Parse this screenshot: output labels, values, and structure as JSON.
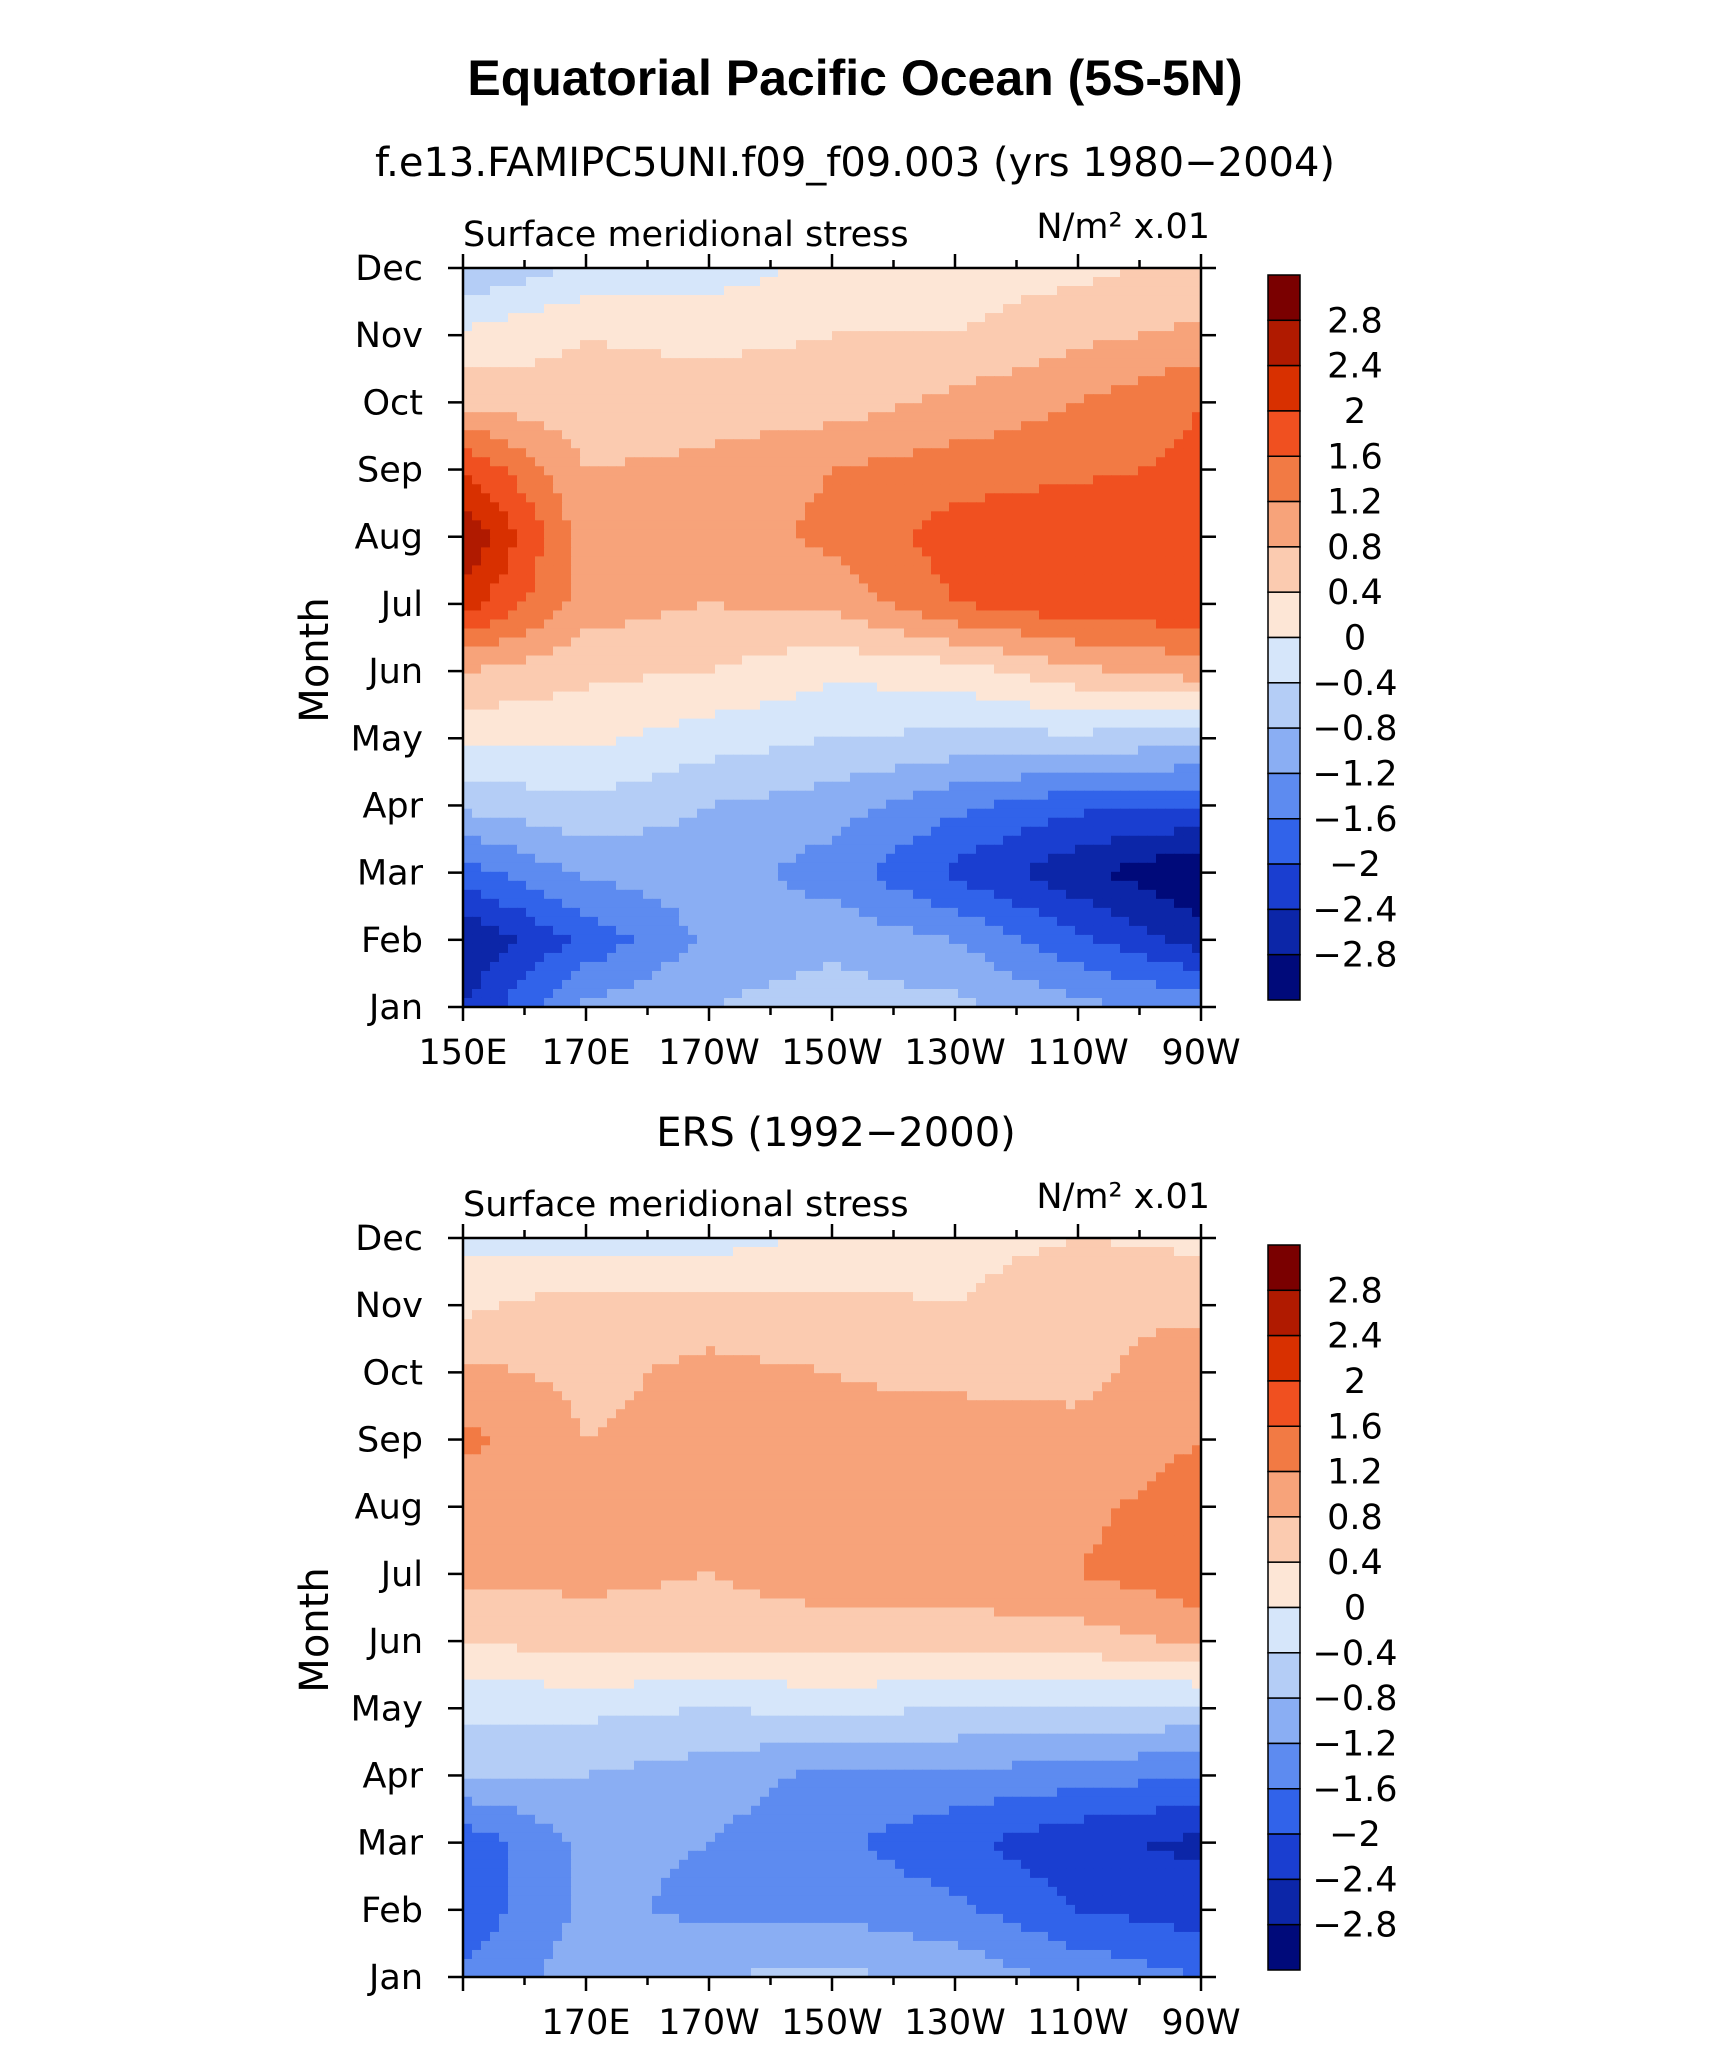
{
  "figure": {
    "title": "Equatorial Pacific Ocean (5S-5N)"
  },
  "colorbar": {
    "labels": [
      "2.8",
      "2.4",
      "2",
      "1.6",
      "1.2",
      "0.8",
      "0.4",
      "0",
      "−0.4",
      "−0.8",
      "−1.2",
      "−1.6",
      "−2",
      "−2.4",
      "−2.8"
    ],
    "colors": [
      "#7a0000",
      "#b01a00",
      "#d83000",
      "#f05020",
      "#f27a44",
      "#f7a37a",
      "#fbcbb0",
      "#fde6d6",
      "#d6e6fa",
      "#b4cdf6",
      "#8aaef3",
      "#5d8bf0",
      "#3163ea",
      "#1a3ed0",
      "#0c26a8",
      "#000a7a"
    ]
  },
  "chart_data": [
    {
      "type": "heatmap",
      "subtitle": "f.e13.FAMIPC5UNI.f09_f09.003 (yrs 1980−2004)",
      "left_label": "Surface meridional stress",
      "units": "N/m² x.01",
      "ylabel": "Month",
      "x_tick_labels": [
        "150E",
        "170E",
        "170W",
        "150W",
        "130W",
        "110W",
        "90W"
      ],
      "y_tick_labels": [
        "Jan",
        "Feb",
        "Mar",
        "Apr",
        "May",
        "Jun",
        "Jul",
        "Aug",
        "Sep",
        "Oct",
        "Nov",
        "Dec"
      ],
      "xlim_deg_east": [
        150,
        270
      ],
      "ylim_months": [
        1,
        12
      ],
      "x_centers_deg_east": [
        150,
        170,
        190,
        210,
        230,
        250,
        270
      ],
      "z_min": -3.2,
      "z_max": 3.2,
      "values": [
        [
          -2.4,
          -1.1,
          -0.8,
          -0.6,
          -0.7,
          -1.1,
          -1.3
        ],
        [
          -2.8,
          -1.9,
          -1.1,
          -0.9,
          -1.2,
          -1.9,
          -2.6
        ],
        [
          -1.8,
          -1.1,
          -1.0,
          -1.4,
          -2.1,
          -2.7,
          -3.2
        ],
        [
          -0.7,
          -0.5,
          -0.8,
          -1.0,
          -1.5,
          -1.9,
          -2.0
        ],
        [
          0.1,
          0.1,
          -0.2,
          -0.4,
          -0.5,
          -0.5,
          -0.6
        ],
        [
          0.8,
          0.5,
          0.4,
          0.1,
          0.2,
          0.7,
          1.0
        ],
        [
          2.2,
          1.0,
          0.8,
          0.9,
          1.6,
          1.9,
          1.9
        ],
        [
          2.8,
          1.0,
          1.0,
          1.3,
          1.8,
          2.0,
          1.9
        ],
        [
          2.0,
          0.8,
          0.9,
          1.2,
          1.4,
          1.5,
          1.7
        ],
        [
          0.7,
          0.5,
          0.6,
          0.6,
          0.9,
          1.2,
          1.6
        ],
        [
          0.1,
          0.4,
          0.3,
          0.4,
          0.4,
          0.7,
          0.9
        ],
        [
          -0.8,
          -0.3,
          -0.2,
          0.1,
          0.2,
          0.3,
          0.5
        ]
      ]
    },
    {
      "type": "heatmap",
      "subtitle": "ERS (1992−2000)",
      "left_label": "Surface meridional stress",
      "units": "N/m² x.01",
      "ylabel": "Month",
      "x_tick_labels": [
        "170E",
        "170W",
        "150W",
        "130W",
        "110W",
        "90W"
      ],
      "y_tick_labels": [
        "Jan",
        "Feb",
        "Mar",
        "Apr",
        "May",
        "Jun",
        "Jul",
        "Aug",
        "Sep",
        "Oct",
        "Nov",
        "Dec"
      ],
      "xlim_deg_east": [
        150,
        270
      ],
      "ylim_months": [
        1,
        12
      ],
      "x_centers_deg_east": [
        150,
        170,
        190,
        210,
        230,
        250,
        270
      ],
      "z_min": -3.2,
      "z_max": 3.2,
      "values": [
        [
          -1.5,
          -1.0,
          -0.8,
          -0.7,
          -0.9,
          -1.3,
          -1.6
        ],
        [
          -1.9,
          -1.1,
          -1.3,
          -1.3,
          -1.5,
          -2.0,
          -2.2
        ],
        [
          -1.9,
          -1.1,
          -1.2,
          -1.5,
          -1.9,
          -2.3,
          -2.5
        ],
        [
          -0.8,
          -0.8,
          -1.0,
          -1.3,
          -1.3,
          -1.4,
          -1.6
        ],
        [
          -0.3,
          -0.3,
          -0.4,
          -0.3,
          -0.4,
          -0.4,
          -0.5
        ],
        [
          0.4,
          0.6,
          0.6,
          0.6,
          0.6,
          0.6,
          0.9
        ],
        [
          0.9,
          0.9,
          0.8,
          1.0,
          1.0,
          1.2,
          1.5
        ],
        [
          1.0,
          0.8,
          0.9,
          1.0,
          1.0,
          1.1,
          1.4
        ],
        [
          1.3,
          0.8,
          0.9,
          0.9,
          1.0,
          0.9,
          1.2
        ],
        [
          0.9,
          0.7,
          0.9,
          0.8,
          0.7,
          0.7,
          1.0
        ],
        [
          0.3,
          0.6,
          0.6,
          0.5,
          0.4,
          0.8,
          0.7
        ],
        [
          -0.1,
          -0.2,
          -0.2,
          0.1,
          0.2,
          0.4,
          0.3
        ]
      ]
    }
  ]
}
